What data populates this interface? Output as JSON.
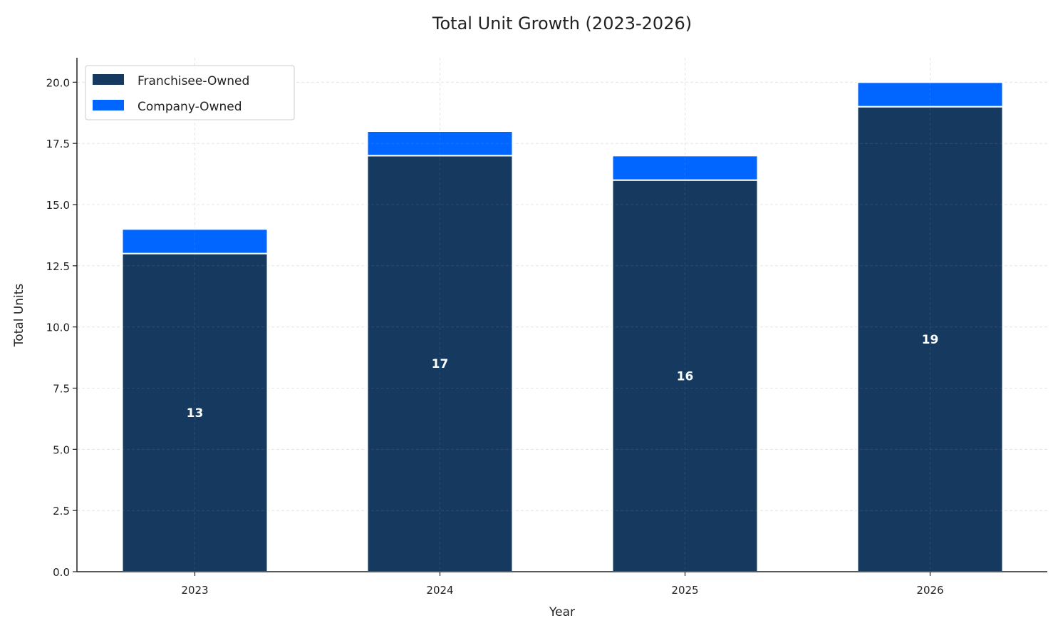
{
  "chart_data": {
    "type": "bar",
    "stacked": true,
    "title": "Total Unit Growth (2023-2026)",
    "xlabel": "Year",
    "ylabel": "Total Units",
    "categories": [
      "2023",
      "2024",
      "2025",
      "2026"
    ],
    "ylim": [
      0,
      21
    ],
    "yticks": [
      "0.0",
      "2.5",
      "5.0",
      "7.5",
      "10.0",
      "12.5",
      "15.0",
      "17.5",
      "20.0"
    ],
    "grid": true,
    "legend_position": "top-left",
    "series": [
      {
        "name": "Franchisee-Owned",
        "color": "#15395f",
        "values": [
          13,
          17,
          16,
          19
        ],
        "data_labels": [
          "13",
          "17",
          "16",
          "19"
        ]
      },
      {
        "name": "Company-Owned",
        "color": "#0066ff",
        "values": [
          1,
          1,
          1,
          1
        ]
      }
    ]
  }
}
